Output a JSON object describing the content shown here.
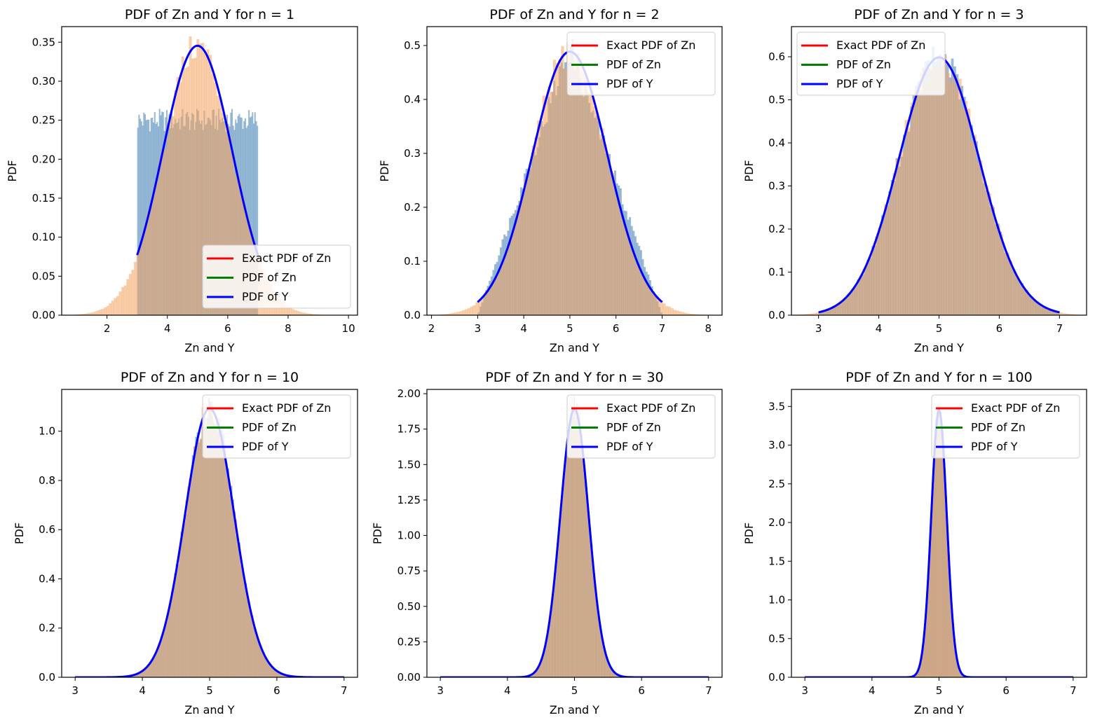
{
  "figure": {
    "background": "#ffffff"
  },
  "chart_data": [
    {
      "type": "line",
      "title": "PDF of Zn and Y for n = 1",
      "n": 1,
      "xlabel": "Zn and Y",
      "ylabel": "PDF",
      "xlim": [
        0.5,
        10.3
      ],
      "ylim": [
        0,
        0.37
      ],
      "xticks": [
        "2",
        "4",
        "6",
        "8",
        "10"
      ],
      "xtick_values": [
        2,
        4,
        6,
        8,
        10
      ],
      "yticks": [
        "0.00",
        "0.05",
        "0.10",
        "0.15",
        "0.20",
        "0.25",
        "0.30",
        "0.35"
      ],
      "ytick_values": [
        0,
        0.05,
        0.1,
        0.15,
        0.2,
        0.25,
        0.3,
        0.35
      ],
      "legend_loc": "lower-right",
      "legend": [
        "Exact PDF of Zn",
        "PDF of Zn",
        "PDF of Y"
      ],
      "series": [
        {
          "name": "Exact PDF of Zn",
          "color": "#ff0000",
          "curve": "normal",
          "mean": 5,
          "sd": 1.1547,
          "x_range": [
            3,
            7
          ]
        },
        {
          "name": "PDF of Zn",
          "color": "#008000",
          "curve": "normal",
          "mean": 5,
          "sd": 1.1547,
          "x_range": [
            3,
            7
          ]
        },
        {
          "name": "PDF of Y",
          "color": "#0000ff",
          "curve": "normal",
          "mean": 5,
          "sd": 1.1547,
          "x_range": [
            3,
            7
          ]
        }
      ],
      "histograms": [
        {
          "color": "#4682b4",
          "kind": "uniform",
          "range": [
            3,
            7
          ],
          "height": 0.25
        },
        {
          "color": "#f4a460",
          "kind": "normal",
          "mean": 5,
          "sd": 1.1547,
          "range": [
            0.9,
            9.2
          ]
        }
      ]
    },
    {
      "type": "line",
      "title": "PDF of Zn and Y for n = 2",
      "n": 2,
      "xlabel": "Zn and Y",
      "ylabel": "PDF",
      "xlim": [
        1.9,
        8.3
      ],
      "ylim": [
        0,
        0.535
      ],
      "xticks": [
        "2",
        "3",
        "4",
        "5",
        "6",
        "7",
        "8"
      ],
      "xtick_values": [
        2,
        3,
        4,
        5,
        6,
        7,
        8
      ],
      "yticks": [
        "0.0",
        "0.1",
        "0.2",
        "0.3",
        "0.4",
        "0.5"
      ],
      "ytick_values": [
        0,
        0.1,
        0.2,
        0.3,
        0.4,
        0.5
      ],
      "legend_loc": "upper-right",
      "legend": [
        "Exact PDF of Zn",
        "PDF of Zn",
        "PDF of Y"
      ],
      "series": [
        {
          "name": "Exact PDF of Zn",
          "color": "#ff0000",
          "curve": "normal",
          "mean": 5,
          "sd": 0.8165,
          "x_range": [
            3,
            7
          ]
        },
        {
          "name": "PDF of Zn",
          "color": "#008000",
          "curve": "normal",
          "mean": 5,
          "sd": 0.8165,
          "x_range": [
            3,
            7
          ]
        },
        {
          "name": "PDF of Y",
          "color": "#0000ff",
          "curve": "normal",
          "mean": 5,
          "sd": 0.8165,
          "x_range": [
            3,
            7
          ]
        }
      ],
      "histograms": [
        {
          "color": "#4682b4",
          "kind": "triangular",
          "range": [
            3,
            7
          ],
          "peak": 0.5
        },
        {
          "color": "#f4a460",
          "kind": "normal",
          "mean": 5,
          "sd": 0.8165,
          "range": [
            2.2,
            8.0
          ]
        }
      ]
    },
    {
      "type": "line",
      "title": "PDF of Zn and Y for n = 3",
      "n": 3,
      "xlabel": "Zn and Y",
      "ylabel": "PDF",
      "xlim": [
        2.55,
        7.45
      ],
      "ylim": [
        0,
        0.67
      ],
      "xticks": [
        "3",
        "4",
        "5",
        "6",
        "7"
      ],
      "xtick_values": [
        3,
        4,
        5,
        6,
        7
      ],
      "yticks": [
        "0.0",
        "0.1",
        "0.2",
        "0.3",
        "0.4",
        "0.5",
        "0.6"
      ],
      "ytick_values": [
        0,
        0.1,
        0.2,
        0.3,
        0.4,
        0.5,
        0.6
      ],
      "legend_loc": "upper-left",
      "legend": [
        "Exact PDF of Zn",
        "PDF of Zn",
        "PDF of Y"
      ],
      "series": [
        {
          "name": "Exact PDF of Zn",
          "color": "#ff0000",
          "curve": "normal",
          "mean": 5,
          "sd": 0.6667,
          "x_range": [
            3,
            7
          ]
        },
        {
          "name": "PDF of Zn",
          "color": "#008000",
          "curve": "normal",
          "mean": 5,
          "sd": 0.6667,
          "x_range": [
            3,
            7
          ]
        },
        {
          "name": "PDF of Y",
          "color": "#0000ff",
          "curve": "normal",
          "mean": 5,
          "sd": 0.6667,
          "x_range": [
            3,
            7
          ]
        }
      ],
      "histograms": [
        {
          "color": "#4682b4",
          "kind": "normal",
          "mean": 5,
          "sd": 0.6667,
          "range": [
            3,
            7
          ]
        },
        {
          "color": "#f4a460",
          "kind": "normal",
          "mean": 5,
          "sd": 0.6667,
          "range": [
            2.45,
            7.4
          ]
        }
      ]
    },
    {
      "type": "line",
      "title": "PDF of Zn and Y for n = 10",
      "n": 10,
      "xlabel": "Zn and Y",
      "ylabel": "PDF",
      "xlim": [
        2.8,
        7.2
      ],
      "ylim": [
        0,
        1.17
      ],
      "xticks": [
        "3",
        "4",
        "5",
        "6",
        "7"
      ],
      "xtick_values": [
        3,
        4,
        5,
        6,
        7
      ],
      "yticks": [
        "0.0",
        "0.2",
        "0.4",
        "0.6",
        "0.8",
        "1.0"
      ],
      "ytick_values": [
        0,
        0.2,
        0.4,
        0.6,
        0.8,
        1.0
      ],
      "legend_loc": "upper-right",
      "legend": [
        "Exact PDF of Zn",
        "PDF of Zn",
        "PDF of Y"
      ],
      "series": [
        {
          "name": "Exact PDF of Zn",
          "color": "#ff0000",
          "curve": "normal",
          "mean": 5,
          "sd": 0.3651,
          "x_range": [
            3,
            7
          ]
        },
        {
          "name": "PDF of Zn",
          "color": "#008000",
          "curve": "normal",
          "mean": 5,
          "sd": 0.3651,
          "x_range": [
            3,
            7
          ]
        },
        {
          "name": "PDF of Y",
          "color": "#0000ff",
          "curve": "normal",
          "mean": 5,
          "sd": 0.3651,
          "x_range": [
            3,
            7
          ]
        }
      ],
      "histograms": [
        {
          "color": "#4682b4",
          "kind": "normal",
          "mean": 5,
          "sd": 0.3651,
          "range": [
            3.8,
            6.2
          ]
        },
        {
          "color": "#f4a460",
          "kind": "normal",
          "mean": 5,
          "sd": 0.3651,
          "range": [
            3.8,
            6.2
          ]
        }
      ]
    },
    {
      "type": "line",
      "title": "PDF of Zn and Y for n = 30",
      "n": 30,
      "xlabel": "Zn and Y",
      "ylabel": "PDF",
      "xlim": [
        2.8,
        7.2
      ],
      "ylim": [
        0,
        2.03
      ],
      "xticks": [
        "3",
        "4",
        "5",
        "6",
        "7"
      ],
      "xtick_values": [
        3,
        4,
        5,
        6,
        7
      ],
      "yticks": [
        "0.00",
        "0.25",
        "0.50",
        "0.75",
        "1.00",
        "1.25",
        "1.50",
        "1.75",
        "2.00"
      ],
      "ytick_values": [
        0,
        0.25,
        0.5,
        0.75,
        1.0,
        1.25,
        1.5,
        1.75,
        2.0
      ],
      "legend_loc": "upper-right",
      "legend": [
        "Exact PDF of Zn",
        "PDF of Zn",
        "PDF of Y"
      ],
      "series": [
        {
          "name": "Exact PDF of Zn",
          "color": "#ff0000",
          "curve": "normal",
          "mean": 5,
          "sd": 0.2108,
          "x_range": [
            3,
            7
          ]
        },
        {
          "name": "PDF of Zn",
          "color": "#008000",
          "curve": "normal",
          "mean": 5,
          "sd": 0.2108,
          "x_range": [
            3,
            7
          ]
        },
        {
          "name": "PDF of Y",
          "color": "#0000ff",
          "curve": "normal",
          "mean": 5,
          "sd": 0.2108,
          "x_range": [
            3,
            7
          ]
        }
      ],
      "histograms": [
        {
          "color": "#4682b4",
          "kind": "normal",
          "mean": 5,
          "sd": 0.2108,
          "range": [
            4.3,
            5.7
          ]
        },
        {
          "color": "#f4a460",
          "kind": "normal",
          "mean": 5,
          "sd": 0.2108,
          "range": [
            4.3,
            5.7
          ]
        }
      ]
    },
    {
      "type": "line",
      "title": "PDF of Zn and Y for n = 100",
      "n": 100,
      "xlabel": "Zn and Y",
      "ylabel": "PDF",
      "xlim": [
        2.8,
        7.2
      ],
      "ylim": [
        0,
        3.72
      ],
      "xticks": [
        "3",
        "4",
        "5",
        "6",
        "7"
      ],
      "xtick_values": [
        3,
        4,
        5,
        6,
        7
      ],
      "yticks": [
        "0.0",
        "0.5",
        "1.0",
        "1.5",
        "2.0",
        "2.5",
        "3.0",
        "3.5"
      ],
      "ytick_values": [
        0,
        0.5,
        1.0,
        1.5,
        2.0,
        2.5,
        3.0,
        3.5
      ],
      "legend_loc": "upper-right",
      "legend": [
        "Exact PDF of Zn",
        "PDF of Zn",
        "PDF of Y"
      ],
      "series": [
        {
          "name": "Exact PDF of Zn",
          "color": "#ff0000",
          "curve": "normal",
          "mean": 5,
          "sd": 0.1155,
          "x_range": [
            3,
            7
          ]
        },
        {
          "name": "PDF of Zn",
          "color": "#008000",
          "curve": "normal",
          "mean": 5,
          "sd": 0.1155,
          "x_range": [
            3,
            7
          ]
        },
        {
          "name": "PDF of Y",
          "color": "#0000ff",
          "curve": "normal",
          "mean": 5,
          "sd": 0.1155,
          "x_range": [
            3,
            7
          ]
        }
      ],
      "histograms": [
        {
          "color": "#4682b4",
          "kind": "normal",
          "mean": 5,
          "sd": 0.1155,
          "range": [
            4.6,
            5.4
          ]
        },
        {
          "color": "#f4a460",
          "kind": "normal",
          "mean": 5,
          "sd": 0.1155,
          "range": [
            4.6,
            5.4
          ]
        }
      ]
    }
  ]
}
